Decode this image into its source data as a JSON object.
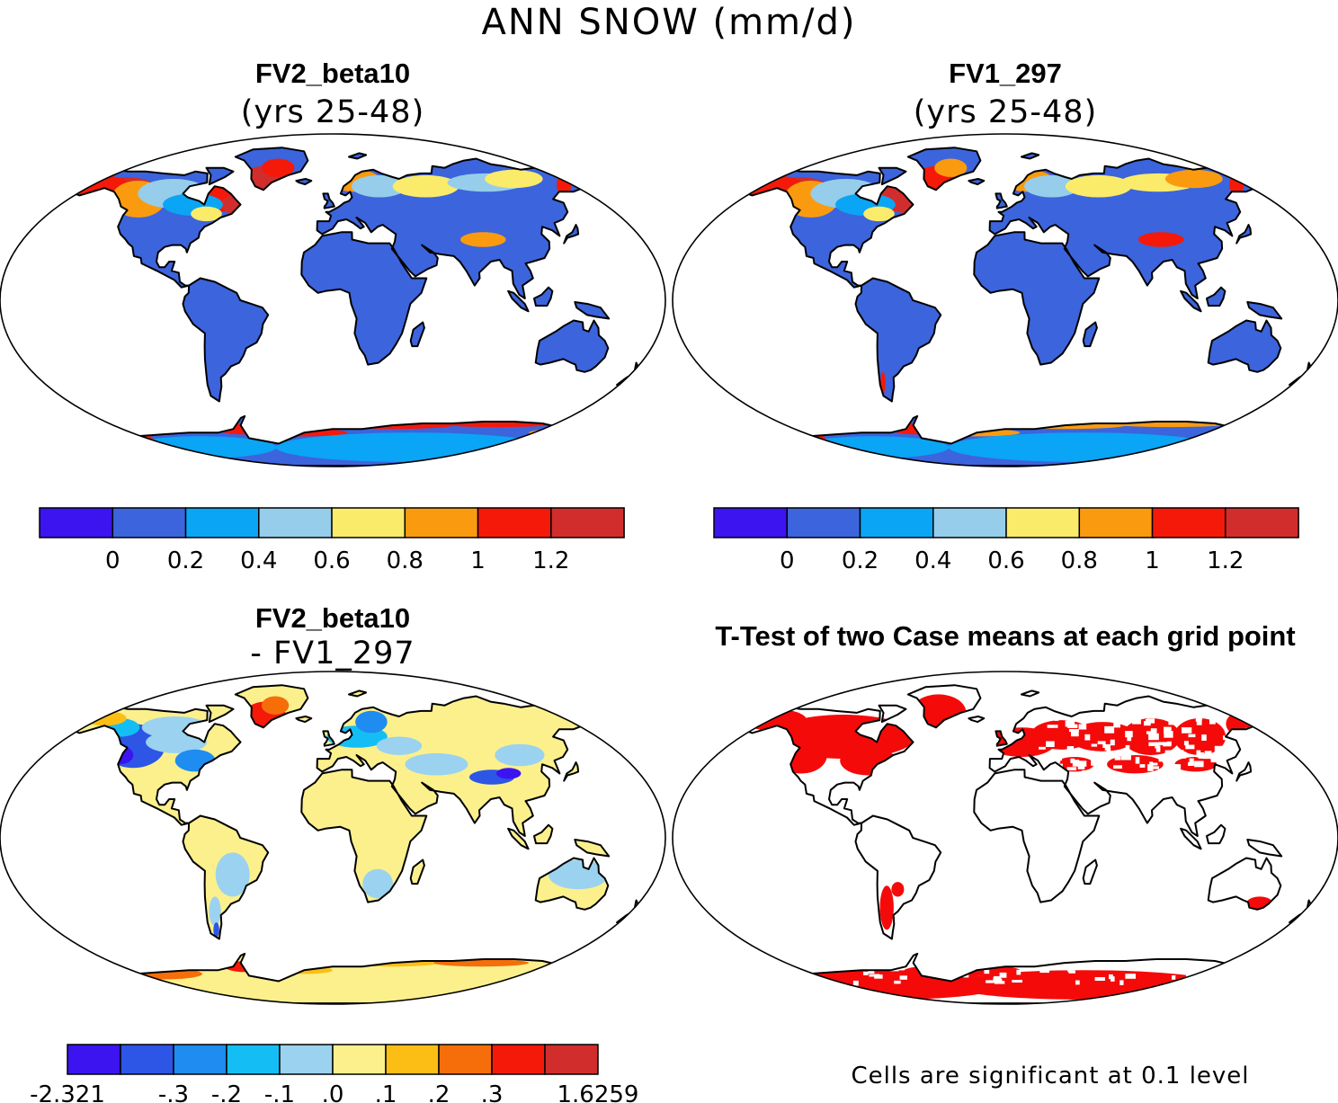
{
  "figure_title": "ANN SNOW (mm/d)",
  "panels": [
    {
      "title": "FV2_beta10",
      "subtitle": "(yrs 25-48)"
    },
    {
      "title": "FV1_297",
      "subtitle": "(yrs 25-48)"
    },
    {
      "title": "FV2_beta10",
      "subtitle": "- FV1_297"
    },
    {
      "title": "T-Test of two Case means at each grid point",
      "subtitle": ""
    }
  ],
  "colorbars": {
    "mean": {
      "colors": [
        "#3b14f0",
        "#3c64dc",
        "#0aa5f5",
        "#96cdeb",
        "#fbeb6a",
        "#fa9b0f",
        "#f5190a",
        "#d22d2d"
      ],
      "tick_labels": [
        "0",
        "0.2",
        "0.4",
        "0.6",
        "0.8",
        "1",
        "1.2"
      ]
    },
    "diff": {
      "colors": [
        "#3b14f0",
        "#2d55e6",
        "#1e8cf0",
        "#14bef5",
        "#9bd2f0",
        "#fbf08c",
        "#fcbe14",
        "#f56e0a",
        "#f5190a",
        "#d22d2d"
      ],
      "tick_labels": [
        "-2.321",
        "-.3",
        "-.2",
        "-.1",
        ".0",
        ".1",
        ".2",
        ".3",
        "1.6259"
      ]
    }
  },
  "ttest_note": "Cells are significant at 0.1 level",
  "chart_data": [
    {
      "type": "heatmap",
      "title": "FV2_beta10",
      "subtitle": "(yrs 25-48)",
      "field": "annual mean snowfall (mm/d)",
      "levels": [
        0,
        0.2,
        0.4,
        0.6,
        0.8,
        1,
        1.2
      ],
      "regions": [
        {
          "region": "Tropics and low latitudes",
          "value": 0.1
        },
        {
          "region": "North America (central)",
          "value": 0.3
        },
        {
          "region": "Northwest North America coast",
          "value": 1.3
        },
        {
          "region": "Northeast Canada / Labrador",
          "value": 1.1
        },
        {
          "region": "Greenland (southern)",
          "value": 1.1
        },
        {
          "region": "Northern Europe / Scandinavia",
          "value": 0.9
        },
        {
          "region": "Northern Siberia",
          "value": 0.7
        },
        {
          "region": "Tibetan Plateau",
          "value": 0.8
        },
        {
          "region": "Antarctic coast",
          "value": 1.1
        },
        {
          "region": "Antarctic interior",
          "value": 0.1
        }
      ]
    },
    {
      "type": "heatmap",
      "title": "FV1_297",
      "subtitle": "(yrs 25-48)",
      "field": "annual mean snowfall (mm/d)",
      "levels": [
        0,
        0.2,
        0.4,
        0.6,
        0.8,
        1,
        1.2
      ],
      "regions": [
        {
          "region": "Tropics and low latitudes",
          "value": 0.1
        },
        {
          "region": "North America (central)",
          "value": 0.3
        },
        {
          "region": "Northwest North America coast",
          "value": 1.3
        },
        {
          "region": "Northeast Canada / Labrador",
          "value": 1.2
        },
        {
          "region": "Greenland (southern)",
          "value": 1.0
        },
        {
          "region": "Northern Europe / Scandinavia",
          "value": 0.9
        },
        {
          "region": "Northern Siberia",
          "value": 0.7
        },
        {
          "region": "Tibetan Plateau",
          "value": 1.0
        },
        {
          "region": "Southern Andes",
          "value": 1.0
        },
        {
          "region": "Antarctic coast",
          "value": 1.0
        },
        {
          "region": "Antarctic interior",
          "value": 0.1
        }
      ]
    },
    {
      "type": "heatmap",
      "title": "FV2_beta10",
      "subtitle": "- FV1_297",
      "field": "difference in annual mean snowfall (mm/d)",
      "levels": [
        -2.321,
        -0.3,
        -0.2,
        -0.1,
        0.0,
        0.1,
        0.2,
        0.3,
        1.6259
      ],
      "regions": [
        {
          "region": "Tropics and low latitudes",
          "value": 0.05
        },
        {
          "region": "Western North America",
          "value": -0.3
        },
        {
          "region": "Eastern North America",
          "value": -0.15
        },
        {
          "region": "Greenland (southern)",
          "value": 0.35
        },
        {
          "region": "Europe",
          "value": -0.15
        },
        {
          "region": "Siberia",
          "value": 0.05
        },
        {
          "region": "Tibetan Plateau",
          "value": -0.35
        },
        {
          "region": "Southern South America",
          "value": -0.05
        },
        {
          "region": "Antarctic Peninsula coast",
          "value": 0.35
        },
        {
          "region": "Antarctica",
          "value": 0.05
        }
      ]
    },
    {
      "type": "heatmap",
      "title": "T-Test of two Case means at each grid point",
      "field": "significance mask (red = significant at 0.1 level)",
      "regions": [
        {
          "region": "North America (most of continent)",
          "significant": true
        },
        {
          "region": "Greenland",
          "significant": true
        },
        {
          "region": "Europe",
          "significant": true
        },
        {
          "region": "Northern Asia (patchy)",
          "significant": true
        },
        {
          "region": "Southern South America (patchy)",
          "significant": true
        },
        {
          "region": "Southeast Australia (small area)",
          "significant": true
        },
        {
          "region": "Antarctica",
          "significant": true
        },
        {
          "region": "Africa",
          "significant": false
        },
        {
          "region": "South Asia",
          "significant": false
        },
        {
          "region": "Australia (most)",
          "significant": false
        }
      ]
    }
  ]
}
